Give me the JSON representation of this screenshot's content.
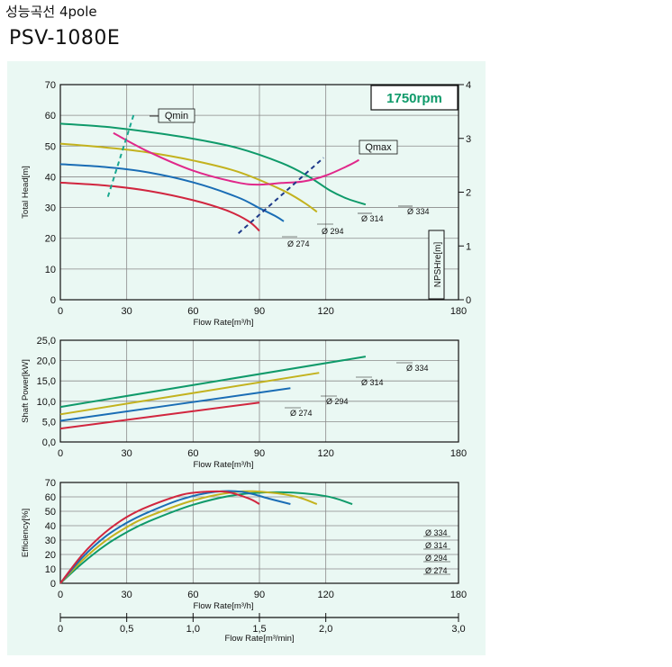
{
  "header": {
    "title_korean": "성능곡선 4pole",
    "model": "PSV-1080E"
  },
  "colors": {
    "background": "#eaf8f3",
    "d334": "#0f9a6a",
    "d314": "#c3b21e",
    "d294": "#1a6db5",
    "d274": "#d1263f",
    "npsh": "#e0288a",
    "qline": "#1e3a8a",
    "qmin_line": "#18a890",
    "rpm_text": "#0f9a6a"
  },
  "chart_data": [
    {
      "id": "head",
      "type": "line",
      "xlabel": "Flow Rate[m³/h]",
      "ylabel": "Total Head[m]",
      "y2label": "NPSHre[m]",
      "xlim": [
        0,
        180
      ],
      "ylim": [
        0,
        70
      ],
      "y2lim": [
        0,
        4
      ],
      "xticks": [
        "0",
        "30",
        "60",
        "90",
        "120",
        "180"
      ],
      "yticks": [
        "0",
        "10",
        "20",
        "30",
        "40",
        "50",
        "60",
        "70"
      ],
      "y2ticks": [
        "0",
        "1",
        "2",
        "3",
        "4"
      ],
      "grid": true,
      "speed_label": "1750rpm",
      "series": [
        {
          "name": "Ø 334",
          "x": [
            0,
            20,
            40,
            60,
            80,
            100,
            112,
            122,
            130,
            138
          ],
          "y": [
            57.3,
            56.3,
            54.6,
            52.4,
            49.4,
            44.5,
            40.2,
            35.5,
            32.8,
            31.0
          ]
        },
        {
          "name": "Ø 314",
          "x": [
            0,
            20,
            40,
            60,
            80,
            100,
            110,
            116
          ],
          "y": [
            50.8,
            49.6,
            47.9,
            45.3,
            41.7,
            35.8,
            31.7,
            28.6
          ]
        },
        {
          "name": "Ø 294",
          "x": [
            0,
            20,
            40,
            60,
            80,
            90,
            97,
            101
          ],
          "y": [
            44.1,
            43.2,
            41.4,
            38.2,
            33.4,
            29.8,
            27.3,
            25.5
          ]
        },
        {
          "name": "Ø 274",
          "x": [
            0,
            20,
            40,
            60,
            75,
            85,
            90
          ],
          "y": [
            38.1,
            37.2,
            35.4,
            32.4,
            29.1,
            25.6,
            22.4
          ]
        }
      ],
      "npshre": {
        "x": [
          24,
          40,
          60,
          80,
          90,
          100,
          110,
          120,
          130,
          135
        ],
        "y": [
          3.1,
          2.75,
          2.4,
          2.18,
          2.14,
          2.17,
          2.2,
          2.31,
          2.49,
          2.6
        ]
      },
      "qmin": {
        "label": "Qmin",
        "x": [
          21.5,
          33.5
        ],
        "y": [
          33.5,
          61.0
        ]
      },
      "qmax": {
        "label": "Qmax",
        "x": [
          80.5,
          119
        ],
        "y": [
          21.6,
          46.2
        ]
      }
    },
    {
      "id": "power",
      "type": "line",
      "xlabel": "Flow Rate[m³/h]",
      "ylabel": "Shaft Power[kW]",
      "xlim": [
        0,
        180
      ],
      "ylim": [
        0,
        25
      ],
      "xticks": [
        "0",
        "30",
        "60",
        "90",
        "120",
        "180"
      ],
      "yticks": [
        "0,0",
        "5,0",
        "10,0",
        "15,0",
        "20,0",
        "25,0"
      ],
      "grid": true,
      "series": [
        {
          "name": "Ø 334",
          "x": [
            0,
            138
          ],
          "y": [
            8.6,
            21.0
          ]
        },
        {
          "name": "Ø 314",
          "x": [
            0,
            117
          ],
          "y": [
            6.8,
            17.0
          ]
        },
        {
          "name": "Ø 294",
          "x": [
            0,
            104
          ],
          "y": [
            5.2,
            13.2
          ]
        },
        {
          "name": "Ø 274",
          "x": [
            0,
            90
          ],
          "y": [
            3.3,
            9.7
          ]
        }
      ]
    },
    {
      "id": "efficiency",
      "type": "line",
      "xlabel": "Flow Rate[m³/h]",
      "x2label": "Flow Rate[m³/min]",
      "ylabel": "Efficiency[%]",
      "xlim": [
        0,
        180
      ],
      "ylim": [
        0,
        70
      ],
      "x2lim": [
        0,
        3.0
      ],
      "xticks": [
        "0",
        "30",
        "60",
        "90",
        "120",
        "180"
      ],
      "x2ticks": [
        "0",
        "0,5",
        "1,0",
        "1,5",
        "2,0",
        "3,0"
      ],
      "yticks": [
        "0",
        "10",
        "20",
        "30",
        "40",
        "50",
        "60",
        "70"
      ],
      "grid": true,
      "series": [
        {
          "name": "Ø 334",
          "x": [
            0,
            10,
            20,
            30,
            40,
            60,
            80,
            100,
            120,
            132
          ],
          "y": [
            0,
            14,
            26,
            35.5,
            43,
            54.5,
            61.5,
            63.2,
            60.5,
            55
          ]
        },
        {
          "name": "Ø 314",
          "x": [
            0,
            10,
            20,
            30,
            40,
            60,
            80,
            95,
            107,
            116
          ],
          "y": [
            0,
            16,
            29,
            39,
            46.5,
            57.5,
            63.5,
            63,
            60,
            55
          ]
        },
        {
          "name": "Ø 294",
          "x": [
            0,
            10,
            20,
            30,
            40,
            55,
            70,
            82,
            95,
            104
          ],
          "y": [
            0,
            18,
            32,
            42,
            49.5,
            58.5,
            63.5,
            63.5,
            58.5,
            55
          ]
        },
        {
          "name": "Ø 274",
          "x": [
            0,
            10,
            20,
            30,
            40,
            55,
            65,
            75,
            85,
            90
          ],
          "y": [
            0,
            20,
            35,
            46,
            53.5,
            61.5,
            63.5,
            63.5,
            59,
            55
          ]
        }
      ]
    }
  ]
}
